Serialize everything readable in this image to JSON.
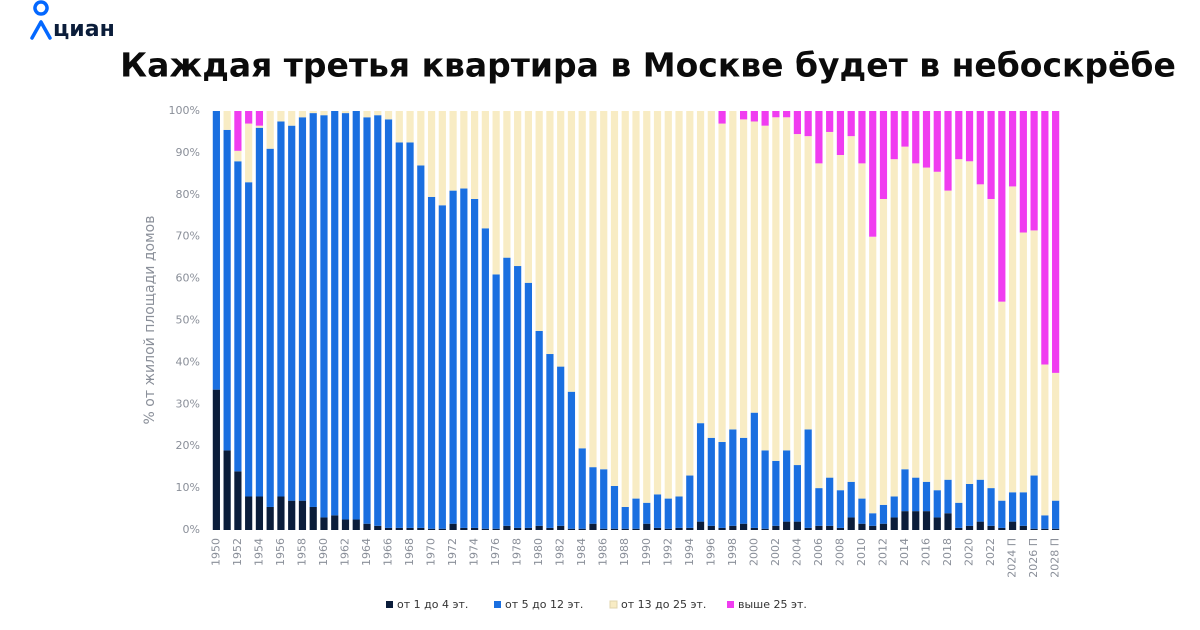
{
  "header": {
    "logo": "циан"
  },
  "chart_data": {
    "type": "stacked_bar",
    "title": "Каждая третья квартира в Москве будет в небоскрёбе",
    "y_label": "% от жилой площади домов",
    "categories": [
      "1950",
      null,
      "1952",
      null,
      "1954",
      null,
      "1956",
      null,
      "1958",
      null,
      "1960",
      null,
      "1962",
      null,
      "1964",
      null,
      "1966",
      null,
      "1968",
      null,
      "1970",
      null,
      "1972",
      null,
      "1974",
      null,
      "1976",
      null,
      "1978",
      null,
      "1980",
      null,
      "1982",
      null,
      "1984",
      null,
      "1986",
      null,
      "1988",
      null,
      "1990",
      null,
      "1992",
      null,
      "1994",
      null,
      "1996",
      null,
      "1998",
      null,
      "2000",
      null,
      "2002",
      null,
      "2004",
      null,
      "2006",
      null,
      "2008",
      null,
      "2010",
      null,
      "2012",
      null,
      "2014",
      null,
      "2016",
      null,
      "2018",
      null,
      "2020",
      null,
      "2022",
      null,
      "2024 П",
      null,
      "2026 П",
      null,
      "2028 П"
    ],
    "series": [
      {
        "name": "от 1 до 4 эт.",
        "color": "#0b1d3a",
        "values": [
          33.5,
          19,
          14,
          8,
          8,
          5.5,
          8,
          7,
          7,
          5.5,
          3,
          3.5,
          2.5,
          2.5,
          1.5,
          1,
          0.5,
          0.5,
          0.5,
          0.5,
          0.3,
          0.3,
          1.5,
          0.5,
          0.5,
          0.3,
          0.3,
          1,
          0.5,
          0.5,
          1,
          0.5,
          1,
          0.3,
          0.3,
          1.5,
          0.3,
          0.3,
          0.3,
          0.3,
          1.5,
          0.5,
          0.3,
          0.5,
          0.5,
          2,
          1,
          0.5,
          1,
          1.5,
          0.5,
          0.3,
          1,
          2,
          2,
          0.5,
          1,
          1,
          0.5,
          3,
          1.5,
          1,
          1.5,
          3,
          4.5,
          4.5,
          4.5,
          3,
          4,
          0.5,
          1,
          2,
          1,
          0.5,
          2,
          1,
          0.3,
          0.3,
          0.3
        ]
      },
      {
        "name": "от 5 до 12 эт.",
        "color": "#1a6fe0",
        "values": [
          66.5,
          76.5,
          74,
          75,
          88,
          85.5,
          89.5,
          89.5,
          91.5,
          94,
          96,
          96.5,
          97,
          97.5,
          97,
          98,
          97.5,
          92,
          92,
          86.5,
          79.2,
          77.2,
          79.5,
          81,
          78.5,
          71.7,
          60.7,
          64,
          62.5,
          58.5,
          46.5,
          41.5,
          38,
          32.7,
          19.2,
          13.5,
          14.2,
          10.2,
          5.2,
          7.2,
          5,
          8,
          7.2,
          7.5,
          12.5,
          23.5,
          21,
          20.5,
          23,
          20.5,
          27.5,
          18.7,
          15.5,
          17,
          13.5,
          23.5,
          9,
          11.5,
          9,
          8.5,
          6,
          3,
          4.5,
          5,
          10,
          8,
          7,
          6.5,
          8,
          6,
          10,
          10,
          9,
          6.5,
          7,
          8,
          12.7,
          3.2,
          6.7
        ]
      },
      {
        "name": "от 13 до 25 эт.",
        "color": "#f8ecc4",
        "values": [
          0,
          4.5,
          2.5,
          14,
          0.5,
          9,
          2.5,
          3.5,
          1.5,
          0.5,
          1,
          0,
          0.5,
          0,
          1.5,
          1,
          2,
          7.5,
          7.5,
          13,
          20.5,
          22.5,
          19,
          18.5,
          21,
          28,
          39,
          35,
          37,
          41,
          52.5,
          58,
          61,
          67,
          80.5,
          85,
          85.5,
          89.5,
          94.5,
          92.5,
          93.5,
          91.5,
          92.5,
          92,
          87,
          74.5,
          78,
          76,
          76,
          76,
          69.5,
          77.5,
          82,
          79.5,
          79,
          70,
          77.5,
          82.5,
          80,
          82.5,
          80,
          66,
          73,
          80.5,
          77,
          75,
          75,
          76,
          69,
          82,
          77,
          70.5,
          69,
          47.5,
          73,
          62,
          58.5,
          36,
          30.5
        ]
      },
      {
        "name": "выше 25 эт.",
        "color": "#f03cf0",
        "values": [
          0,
          0,
          9.5,
          3,
          3.5,
          0,
          0,
          0,
          0,
          0,
          0,
          0,
          0,
          0,
          0,
          0,
          0,
          0,
          0,
          0,
          0,
          0,
          0,
          0,
          0,
          0,
          0,
          0,
          0,
          0,
          0,
          0,
          0,
          0,
          0,
          0,
          0,
          0,
          0,
          0,
          0,
          0,
          0,
          0,
          0,
          0,
          0,
          3,
          0,
          2,
          2.5,
          3.5,
          1.5,
          1.5,
          5.5,
          6,
          12.5,
          5,
          10.5,
          6,
          12.5,
          30,
          21,
          11.5,
          8.5,
          12.5,
          13.5,
          14.5,
          19,
          11.5,
          12,
          17.5,
          21,
          45.5,
          18,
          29,
          28.5,
          60.5,
          62.5
        ]
      }
    ],
    "ylim": [
      0,
      100
    ],
    "yticks": [
      {
        "value": 0,
        "label": "0%"
      },
      {
        "value": 10,
        "label": "10%"
      },
      {
        "value": 20,
        "label": "20%"
      },
      {
        "value": 30,
        "label": "30%"
      },
      {
        "value": 40,
        "label": "40%"
      },
      {
        "value": 50,
        "label": "50%"
      },
      {
        "value": 60,
        "label": "60%"
      },
      {
        "value": 70,
        "label": "70%"
      },
      {
        "value": 80,
        "label": "80%"
      },
      {
        "value": 90,
        "label": "90%"
      },
      {
        "value": 100,
        "label": "100%"
      }
    ],
    "legend": "bottom"
  }
}
